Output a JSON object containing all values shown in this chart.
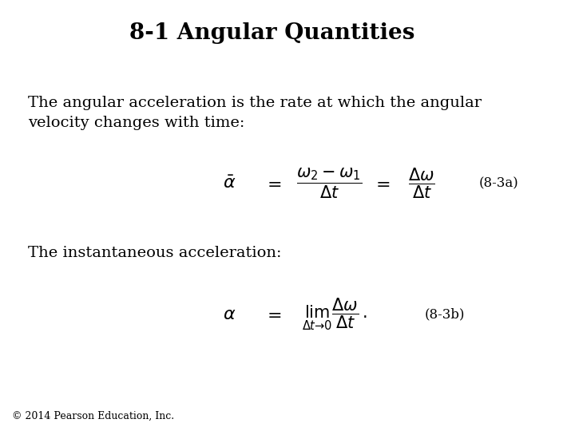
{
  "title": "8-1 Angular Quantities",
  "title_fontsize": 20,
  "title_bold": true,
  "bg_color": "#ffffff",
  "text_color": "#000000",
  "body_text1": "The angular acceleration is the rate at which the angular\nvelocity changes with time:",
  "body_text2": "The instantaneous acceleration:",
  "eq1_label": "(8-3a)",
  "eq2_label": "(8-3b)",
  "footer": "© 2014 Pearson Education, Inc.",
  "eq1": "\\bar{\\alpha}   =   \\frac{\\omega_2 - \\omega_1}{\\Delta t}   =   \\frac{\\Delta\\omega}{\\Delta t}",
  "eq2": "\\alpha   =   \\lim_{\\Delta t \\to 0} \\frac{\\Delta\\omega}{\\Delta t}\\,."
}
